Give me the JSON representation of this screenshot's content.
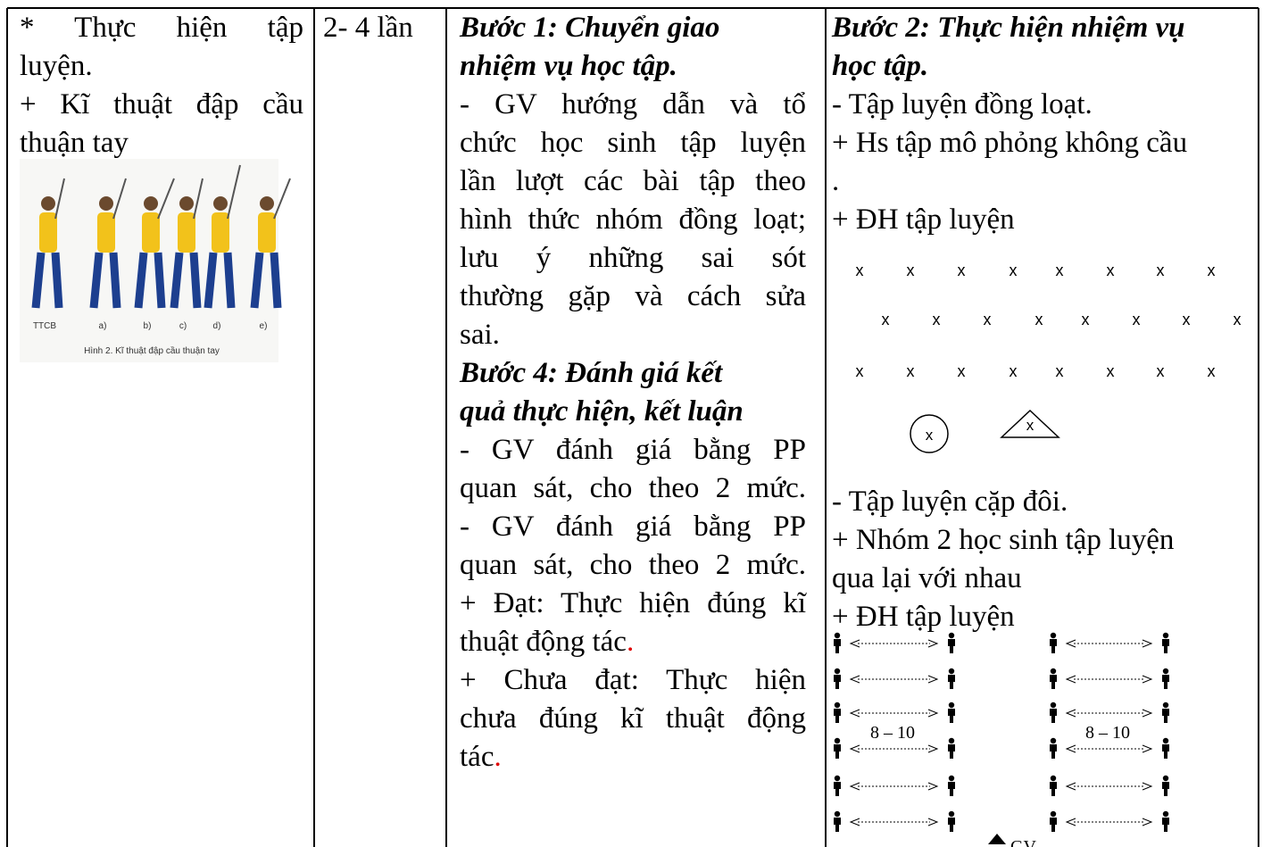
{
  "table": {
    "rows": [
      [
        {
          "lines": [
            "* Thực hiện tập",
            "luyện.",
            "+ Kĩ thuật đập cầu",
            "thuận tay"
          ],
          "figure": {
            "labels": [
              "TTCB",
              "a)",
              "b)",
              "c)",
              "d)",
              "e)"
            ],
            "caption": "Hình 2. Kĩ thuật đập cầu thuận tay"
          }
        },
        {
          "lines": [
            "2- 4 lần"
          ]
        },
        {
          "step_1": {
            "heading": [
              "Bước 1: Chuyển giao",
              "nhiệm vụ học tập."
            ],
            "lines": [
              "- GV hướng dẫn và tổ",
              "chức học sinh tập luyện",
              "lần lượt các bài tập theo",
              "hình thức nhóm đồng loạt;",
              "lưu ý những sai sót",
              "thường gặp và cách sửa",
              "sai."
            ]
          },
          "step_4": {
            "heading": [
              "Bước 4: Đánh giá kết",
              "quả thực hiện, kết luận"
            ],
            "lines": [
              " - GV đánh giá bằng PP",
              "quan sát, cho theo 2 mức.",
              "- GV đánh giá bằng PP",
              "quan sát, cho theo 2 mức.",
              "+ Đạt: Thực hiện đúng kĩ",
              [
                "thuật động tác",
                "."
              ],
              "+ Chưa đạt: Thực hiện",
              "chưa đúng kĩ thuật động",
              [
                "tác",
                "."
              ]
            ]
          }
        },
        {
          "step_2": {
            "heading": [
              "Bước 2: Thực hiện nhiệm vụ",
              "học tập."
            ],
            "lines": [
              "- Tập luyện đồng loạt.",
              "+ Hs tập mô phỏng không cầu",
              ".",
              "+ ĐH tập luyện"
            ]
          },
          "formation": {
            "mark": "x"
          },
          "pairs": {
            "lines": [
              "- Tập luyện cặp đôi.",
              "+ Nhóm 2 học sinh tập luyện",
              "qua lại với nhau",
              "+ ĐH tập luyện"
            ],
            "distance": "8 – 10",
            "teacher": "GV"
          }
        }
      ]
    ]
  }
}
